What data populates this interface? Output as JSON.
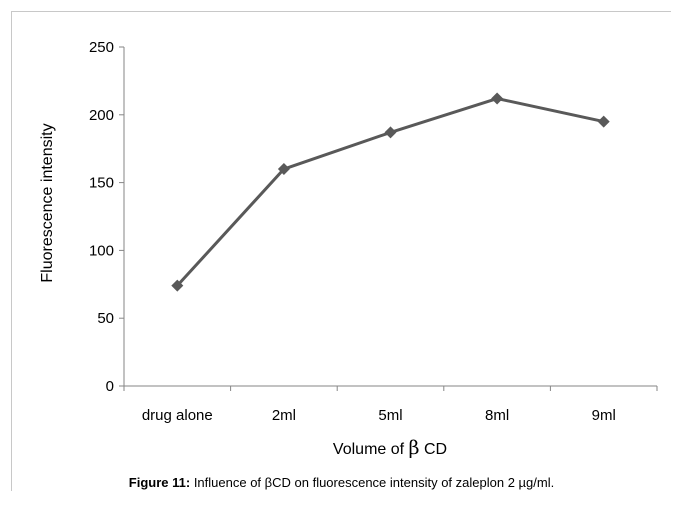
{
  "chart_data": {
    "type": "line",
    "categories": [
      "drug alone",
      "2ml",
      "5ml",
      "8ml",
      "9ml"
    ],
    "values": [
      74,
      160,
      187,
      212,
      195
    ],
    "xlabel_prefix": "Volume of ",
    "xlabel_symbol": "β",
    "xlabel_suffix": " CD",
    "ylabel": "Fluorescence intensity",
    "ylim": [
      0,
      250
    ],
    "yticks": [
      0,
      50,
      100,
      150,
      200,
      250
    ],
    "yticks_labels": [
      "0",
      "50",
      "100",
      "150",
      "200",
      "250"
    ],
    "grid": false,
    "legend": "none",
    "line_color": "#595959",
    "marker": "diamond"
  },
  "caption": {
    "label": "Figure 11:",
    "text": " Influence of βCD on fluorescence intensity of zaleplon 2 µg/ml."
  }
}
